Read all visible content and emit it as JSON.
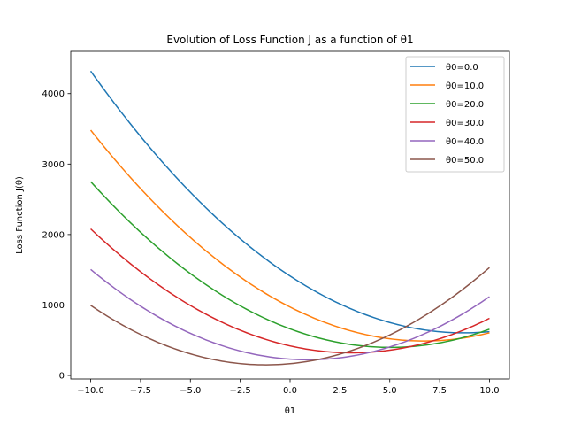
{
  "chart_data": {
    "type": "line",
    "title": "Evolution of Loss Function J as a function of θ1",
    "xlabel": "θ1",
    "ylabel": "Loss Function J(θ)",
    "xlim": [
      -11.0,
      11.0
    ],
    "ylim": [
      -50,
      4600
    ],
    "x_ticks": [
      -10.0,
      -7.5,
      -5.0,
      -2.5,
      0.0,
      2.5,
      5.0,
      7.5,
      10.0
    ],
    "x_tick_labels": [
      "−10.0",
      "−7.5",
      "−5.0",
      "−2.5",
      "0.0",
      "2.5",
      "5.0",
      "7.5",
      "10.0"
    ],
    "y_ticks": [
      0,
      1000,
      2000,
      3000,
      4000
    ],
    "y_tick_labels": [
      "0",
      "1000",
      "2000",
      "3000",
      "4000"
    ],
    "grid": false,
    "legend_position": "top-right",
    "x": [
      -10.0,
      -7.5,
      -5.0,
      -2.5,
      0.0,
      2.5,
      5.0,
      7.5,
      10.0
    ],
    "series": [
      {
        "name": "θ0=0.0",
        "color": "#1f77b4",
        "values": [
          4380,
          3300,
          2600,
          1950,
          1430,
          1020,
          760,
          620,
          610
        ]
      },
      {
        "name": "θ0=10.0",
        "color": "#ff7f0e",
        "values": [
          3500,
          2620,
          1950,
          1420,
          980,
          680,
          520,
          470,
          620
        ]
      },
      {
        "name": "θ0=20.0",
        "color": "#2ca02c",
        "values": [
          2720,
          2060,
          1450,
          1020,
          660,
          450,
          370,
          440,
          690
        ]
      },
      {
        "name": "θ0=30.0",
        "color": "#d62728",
        "values": [
          2030,
          1500,
          1030,
          680,
          420,
          300,
          310,
          480,
          870
        ]
      },
      {
        "name": "θ0=40.0",
        "color": "#9467bd",
        "values": [
          1450,
          1020,
          650,
          370,
          210,
          220,
          370,
          690,
          1150
        ]
      },
      {
        "name": "θ0=50.0",
        "color": "#8c564b",
        "values": [
          960,
          620,
          330,
          160,
          150,
          300,
          560,
          990,
          1540
        ]
      }
    ]
  }
}
